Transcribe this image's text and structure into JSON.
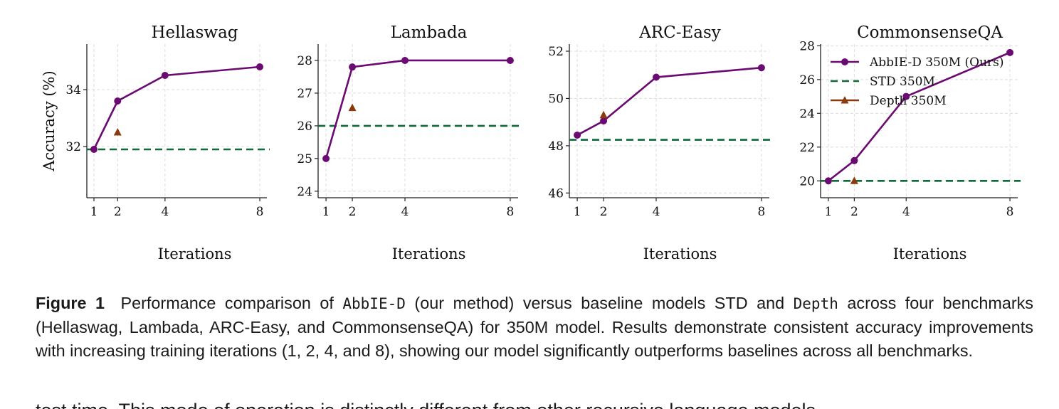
{
  "figure": {
    "colors": {
      "abbie": "#6a0a72",
      "std": "#0d6b3a",
      "depth": "#8b3a0e"
    },
    "legend": {
      "abbie": "AbbIE-D 350M (Ours)",
      "std": "STD 350M",
      "depth": "Depth 350M"
    },
    "ylabel": "Accuracy (%)"
  },
  "chart_data": [
    {
      "type": "line",
      "title": "Hellaswag",
      "xlabel": "Iterations",
      "x_ticks": [
        1,
        2,
        4,
        8
      ],
      "y_ticks": [
        32,
        34
      ],
      "xlim": [
        0.7,
        8.3
      ],
      "ylim": [
        30.2,
        35.6
      ],
      "series": [
        {
          "name": "AbbIE-D 350M (Ours)",
          "x": [
            1,
            2,
            4,
            8
          ],
          "y": [
            31.9,
            33.6,
            34.5,
            34.8
          ]
        },
        {
          "name": "STD 350M",
          "baseline": 31.9
        },
        {
          "name": "Depth 350M",
          "x": [
            2
          ],
          "y": [
            32.5
          ]
        }
      ]
    },
    {
      "type": "line",
      "title": "Lambada",
      "xlabel": "Iterations",
      "x_ticks": [
        1,
        2,
        4,
        8
      ],
      "y_ticks": [
        24,
        25,
        26,
        27,
        28
      ],
      "xlim": [
        0.7,
        8.3
      ],
      "ylim": [
        23.8,
        28.5
      ],
      "series": [
        {
          "name": "AbbIE-D 350M (Ours)",
          "x": [
            1,
            2,
            4,
            8
          ],
          "y": [
            25.0,
            27.8,
            28.0,
            28.0
          ]
        },
        {
          "name": "STD 350M",
          "baseline": 26.0
        },
        {
          "name": "Depth 350M",
          "x": [
            2
          ],
          "y": [
            26.55
          ]
        }
      ]
    },
    {
      "type": "line",
      "title": "ARC-Easy",
      "xlabel": "Iterations",
      "x_ticks": [
        1,
        2,
        4,
        8
      ],
      "y_ticks": [
        46,
        48,
        50,
        52
      ],
      "xlim": [
        0.7,
        8.3
      ],
      "ylim": [
        45.8,
        52.3
      ],
      "series": [
        {
          "name": "AbbIE-D 350M (Ours)",
          "x": [
            1,
            2,
            4,
            8
          ],
          "y": [
            48.45,
            49.05,
            50.9,
            51.3
          ]
        },
        {
          "name": "STD 350M",
          "baseline": 48.25
        },
        {
          "name": "Depth 350M",
          "x": [
            2
          ],
          "y": [
            49.3
          ]
        }
      ]
    },
    {
      "type": "line",
      "title": "CommonsenseQA",
      "xlabel": "Iterations",
      "x_ticks": [
        1,
        2,
        4,
        8
      ],
      "y_ticks": [
        20,
        22,
        24,
        26,
        28
      ],
      "xlim": [
        0.7,
        8.3
      ],
      "ylim": [
        19.0,
        28.1
      ],
      "series": [
        {
          "name": "AbbIE-D 350M (Ours)",
          "x": [
            1,
            2,
            4,
            8
          ],
          "y": [
            20.0,
            21.2,
            25.0,
            27.6
          ]
        },
        {
          "name": "STD 350M",
          "baseline": 20.0
        },
        {
          "name": "Depth 350M",
          "x": [
            2
          ],
          "y": [
            20.0
          ]
        }
      ],
      "legend": "top-left"
    }
  ],
  "caption": {
    "label": "Figure 1",
    "part1": "Performance comparison of",
    "model": "AbbIE-D",
    "part2": "(our method) versus baseline models STD and",
    "depth": "Depth",
    "part3": "across four benchmarks (Hellaswag, Lambada, ARC-Easy, and CommonsenseQA) for 350M model. Results demonstrate consistent accuracy improvements with increasing training iterations (1, 2, 4, and 8), showing our model significantly outperforms baselines across all benchmarks."
  },
  "body_text": "test time. This mode of operation is distinctly different from other recursive language models"
}
